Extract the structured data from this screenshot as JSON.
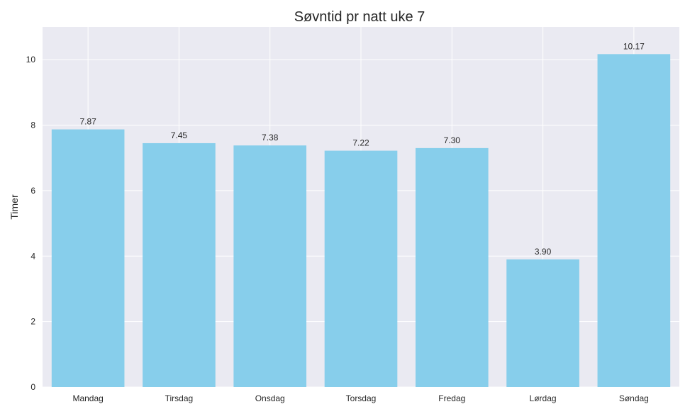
{
  "chart_data": {
    "type": "bar",
    "title": "Søvntid pr natt uke 7",
    "xlabel": "",
    "ylabel": "Timer",
    "categories": [
      "Mandag",
      "Tirsdag",
      "Onsdag",
      "Torsdag",
      "Fredag",
      "Lørdag",
      "Søndag"
    ],
    "values": [
      7.87,
      7.45,
      7.38,
      7.22,
      7.3,
      3.9,
      10.17
    ],
    "value_labels": [
      "7.87",
      "7.45",
      "7.38",
      "7.22",
      "7.30",
      "3.90",
      "10.17"
    ],
    "ylim": [
      0,
      11
    ],
    "yticks": [
      0,
      2,
      4,
      6,
      8,
      10
    ],
    "grid": true,
    "colors": {
      "bar": "#87ceeb",
      "plot_background": "#eaeaf2",
      "grid": "#ffffff",
      "text": "#262626"
    }
  }
}
